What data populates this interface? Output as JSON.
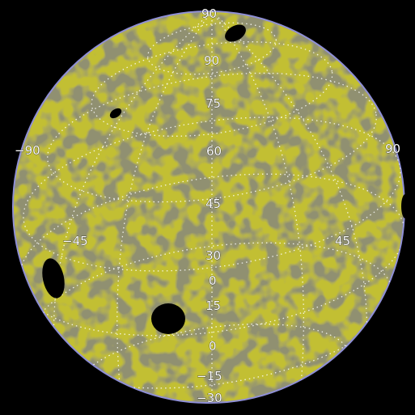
{
  "image": {
    "subject": "stellar surface map",
    "colors": {
      "background": "#000000",
      "surface_bright": "#c9c531",
      "surface_mid": "#a9a53a",
      "surface_dark": "#8c8c7e",
      "limb": "#8f8fd6",
      "grid": "#ffffff",
      "spot": "#000000"
    },
    "labels": {
      "lat_90": "90",
      "lat_75": "75",
      "lat_60": "60",
      "lat_45": "45",
      "lat_30": "30",
      "lat_15": "15",
      "lat_0": "0",
      "lat_m15": "−15",
      "lat_m30": "−30",
      "lon_m90": "−90",
      "lon_90": "90",
      "lon_m45": "−45",
      "lon_45": "45",
      "lon_0": "0"
    }
  }
}
